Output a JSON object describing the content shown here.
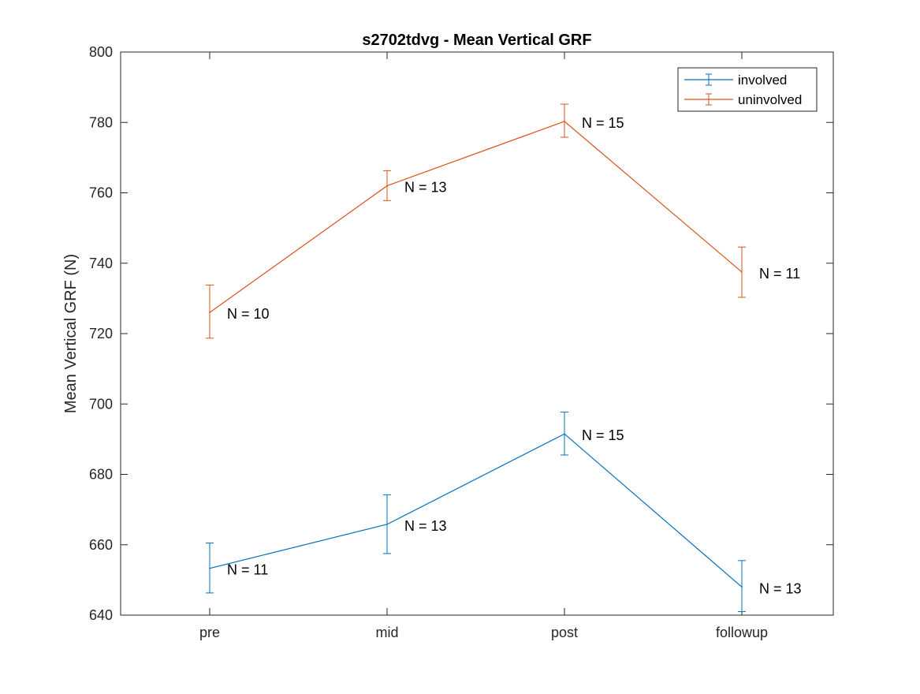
{
  "chart_data": {
    "type": "line",
    "title": "s2702tdvg - Mean Vertical GRF",
    "xlabel": "",
    "ylabel": "Mean Vertical GRF (N)",
    "categories": [
      "pre",
      "mid",
      "post",
      "followup"
    ],
    "ylim": [
      640,
      800
    ],
    "yticks": [
      640,
      660,
      680,
      700,
      720,
      740,
      760,
      780,
      800
    ],
    "grid": false,
    "legend_position": "top-right",
    "series": [
      {
        "name": "involved",
        "color": "#0072BD",
        "values": [
          653.3,
          665.8,
          691.5,
          648.0
        ],
        "error_low": [
          646.3,
          657.5,
          685.5,
          641.0
        ],
        "error_high": [
          660.5,
          674.2,
          697.7,
          655.5
        ],
        "annotations": [
          "N = 11",
          "N = 13",
          "N = 15",
          "N = 13"
        ]
      },
      {
        "name": "uninvolved",
        "color": "#D95319",
        "values": [
          726.0,
          762.0,
          780.3,
          737.5
        ],
        "error_low": [
          718.7,
          757.8,
          775.8,
          730.3
        ],
        "error_high": [
          733.8,
          766.3,
          785.2,
          744.6
        ],
        "annotations": [
          "N = 10",
          "N = 13",
          "N = 15",
          "N = 11"
        ]
      }
    ]
  }
}
